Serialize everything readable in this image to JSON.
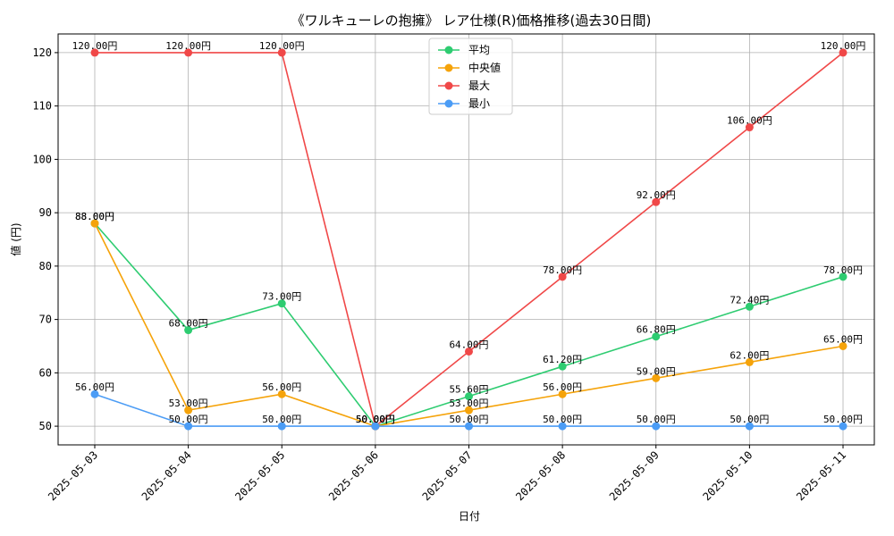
{
  "chart_data": {
    "type": "line",
    "title": "《ワルキューレの抱擁》 レア仕様(R)価格推移(過去30日間)",
    "xlabel": "日付",
    "ylabel": "値 (円)",
    "ylim": [
      46.5,
      123.5
    ],
    "yticks": [
      50,
      60,
      70,
      80,
      90,
      100,
      110,
      120
    ],
    "grid": true,
    "legend_position": "top-center",
    "value_suffix": "円",
    "categories": [
      "2025-05-03",
      "2025-05-04",
      "2025-05-05",
      "2025-05-06",
      "2025-05-07",
      "2025-05-08",
      "2025-05-09",
      "2025-05-10",
      "2025-05-11"
    ],
    "series": [
      {
        "name": "平均",
        "color": "#2ecc71",
        "values": [
          88.0,
          68.0,
          73.0,
          50.0,
          55.6,
          61.2,
          66.8,
          72.4,
          78.0
        ]
      },
      {
        "name": "中央値",
        "color": "#f5a30a",
        "values": [
          88.0,
          53.0,
          56.0,
          50.0,
          53.0,
          56.0,
          59.0,
          62.0,
          65.0
        ]
      },
      {
        "name": "最大",
        "color": "#f04848",
        "values": [
          120.0,
          120.0,
          120.0,
          50.0,
          64.0,
          78.0,
          92.0,
          106.0,
          120.0
        ]
      },
      {
        "name": "最小",
        "color": "#4b9cf5",
        "values": [
          56.0,
          50.0,
          50.0,
          50.0,
          50.0,
          50.0,
          50.0,
          50.0,
          50.0
        ]
      }
    ]
  }
}
